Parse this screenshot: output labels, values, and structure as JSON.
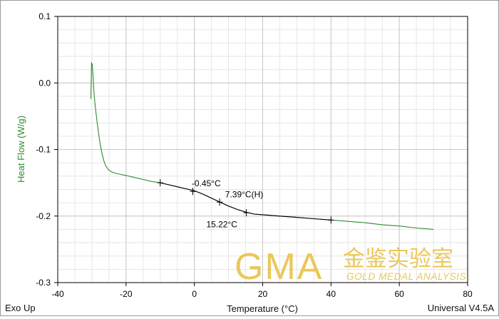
{
  "chart_data": {
    "type": "line",
    "xlabel": "Temperature (°C)",
    "ylabel": "Heat Flow (W/g)",
    "xlim": [
      -40,
      80
    ],
    "ylim": [
      -0.3,
      0.1
    ],
    "x_ticks": [
      "-40",
      "-20",
      "0",
      "20",
      "40",
      "60",
      "80"
    ],
    "y_ticks": [
      "0.1",
      "0.0",
      "-0.1",
      "-0.2",
      "-0.3"
    ],
    "x_tick_values": [
      -40,
      -20,
      0,
      20,
      40,
      60,
      80
    ],
    "y_tick_values": [
      0.1,
      0.0,
      -0.1,
      -0.2,
      -0.3
    ],
    "x_minor_step": 5,
    "y_minor_step": 0.02,
    "grid": true,
    "colors": {
      "curve": "#2e8b2e",
      "tangent": "#000000",
      "axis_text": "#000000",
      "ylabel": "#2e8b2e",
      "grid": "#c8c8c8",
      "watermark": "#e8c34a"
    },
    "series": [
      {
        "x": [
          -30.3,
          -30.1,
          -29.9,
          -29.7,
          -29.5,
          -29.3,
          -29.0,
          -28.5,
          -28.0,
          -27.5,
          -27.0,
          -26.5,
          -26.0,
          -25.5,
          -25.0,
          -24.5,
          -23.5,
          -22.0,
          -20.0,
          -17.5,
          -15.0,
          -12.5,
          -10.0,
          -7.5,
          -5.0,
          -2.5,
          0.0,
          2.5,
          5.0,
          7.5,
          10.0,
          12.5,
          15.0,
          17.5,
          20.0,
          25.0,
          30.0,
          35.0,
          40.0,
          45.0,
          50.0,
          55.0,
          60.0,
          65.0,
          70.0
        ],
        "y": [
          -0.024,
          0.03,
          0.028,
          0.012,
          -0.006,
          -0.02,
          -0.036,
          -0.058,
          -0.077,
          -0.094,
          -0.107,
          -0.117,
          -0.124,
          -0.128,
          -0.131,
          -0.133,
          -0.135,
          -0.137,
          -0.139,
          -0.142,
          -0.145,
          -0.148,
          -0.15,
          -0.153,
          -0.156,
          -0.159,
          -0.162,
          -0.167,
          -0.173,
          -0.179,
          -0.185,
          -0.19,
          -0.194,
          -0.197,
          -0.198,
          -0.2,
          -0.202,
          -0.204,
          -0.206,
          -0.208,
          -0.21,
          -0.213,
          -0.215,
          -0.218,
          -0.22
        ]
      }
    ],
    "analysis_segment": {
      "x": [
        -10,
        -7.5,
        -5,
        -2.5,
        0,
        2.5,
        5,
        7.5,
        10,
        12.5,
        15,
        17.5,
        20,
        25,
        30,
        35,
        40
      ],
      "y": [
        -0.15,
        -0.153,
        -0.156,
        -0.159,
        -0.162,
        -0.167,
        -0.173,
        -0.179,
        -0.185,
        -0.19,
        -0.194,
        -0.197,
        -0.198,
        -0.2,
        -0.202,
        -0.204,
        -0.206
      ]
    },
    "markers": [
      {
        "x": -10,
        "y": -0.15
      },
      {
        "x": -0.45,
        "y": -0.163
      },
      {
        "x": 7.39,
        "y": -0.179
      },
      {
        "x": 15.22,
        "y": -0.195
      },
      {
        "x": 40,
        "y": -0.206
      }
    ],
    "annotations": [
      {
        "text": "-0.45°C",
        "x": -0.8,
        "y": -0.155
      },
      {
        "text": "7.39°C(H)",
        "x": 9.0,
        "y": -0.172
      },
      {
        "text": "15.22°C",
        "x": 3.5,
        "y": -0.217
      }
    ]
  },
  "footer": {
    "left": "Exo Up",
    "right": "Universal V4.5A"
  },
  "watermark": {
    "logo": "GMA",
    "chinese": "金鉴实验室",
    "english": "GOLD MEDAL ANALYSIS"
  }
}
